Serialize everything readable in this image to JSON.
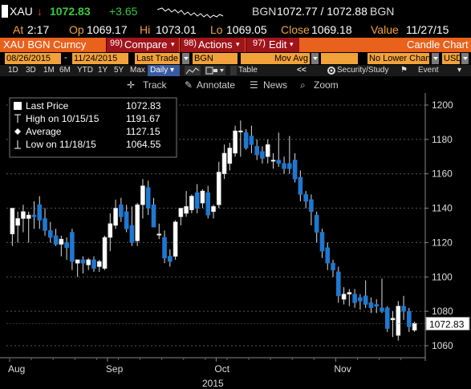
{
  "quote": {
    "ticker": "XAU",
    "arrow": "↓",
    "last": "1072.83",
    "change": "+3.65",
    "source": "BGN",
    "bid_ask": "1072.77 / 1072.88",
    "source2": "BGN",
    "at_label": "At",
    "at_value": "2:17",
    "open_label": "Op",
    "open_value": "1069.17",
    "high_label": "Hi",
    "high_value": "1073.01",
    "low_label": "Lo",
    "low_value": "1069.05",
    "close_label": "Close",
    "close_value": "1069.18",
    "value_label": "Value",
    "value_date": "11/27/15"
  },
  "toolbar": {
    "security": "XAU BGN Curncy",
    "compare": "Compare",
    "compare_num": "99)",
    "actions": "Actions",
    "actions_num": "98)",
    "edit": "Edit",
    "edit_num": "97)",
    "chart_title": "Candle Chart"
  },
  "settings": {
    "start_date": "08/26/2015",
    "dash": "-",
    "end_date": "11/24/2015",
    "price_field": "Last Trade",
    "source": "BGN",
    "study": "Mov Avg",
    "lower_chart": "No Lower Chart",
    "currency": "USD"
  },
  "ranges": [
    "1D",
    "3D",
    "1M",
    "6M",
    "YTD",
    "1Y",
    "5Y",
    "Max"
  ],
  "period": "Daily",
  "table_label": "Table",
  "nav_prev": "<<",
  "security_study": "Security/Study",
  "event": "Event",
  "tools": {
    "track": "Track",
    "annotate": "Annotate",
    "news": "News",
    "zoom": "Zoom"
  },
  "legend": [
    {
      "label": "Last Price",
      "value": "1072.83"
    },
    {
      "label": "High on 10/15/15",
      "value": "1191.67"
    },
    {
      "label": "Average",
      "value": "1127.15"
    },
    {
      "label": "Low on 11/18/15",
      "value": "1064.55"
    }
  ],
  "colors": {
    "up": "#ffffff",
    "down": "#1f78d1",
    "accent": "#e8611d",
    "positive": "#3cc83c",
    "negative": "#e03c3c",
    "field": "#f2a23a"
  },
  "chart_data": {
    "type": "candlestick",
    "ylim": [
      1053,
      1207
    ],
    "yticks": [
      "1060",
      "1080",
      "1100",
      "1120",
      "1140",
      "1160",
      "1180",
      "1200"
    ],
    "xticks": [
      "Aug",
      "Sep",
      "Oct",
      "Nov"
    ],
    "year_label": "2015",
    "last_price_label": "1072.83",
    "candles": [
      {
        "o": 1125,
        "h": 1140,
        "l": 1118,
        "c": 1140
      },
      {
        "o": 1130,
        "h": 1138,
        "l": 1120,
        "c": 1134
      },
      {
        "o": 1134,
        "h": 1142,
        "l": 1126,
        "c": 1138
      },
      {
        "o": 1134,
        "h": 1138,
        "l": 1120,
        "c": 1136
      },
      {
        "o": 1136,
        "h": 1144,
        "l": 1128,
        "c": 1135
      },
      {
        "o": 1142,
        "h": 1147,
        "l": 1128,
        "c": 1133
      },
      {
        "o": 1134,
        "h": 1140,
        "l": 1124,
        "c": 1127
      },
      {
        "o": 1127,
        "h": 1132,
        "l": 1120,
        "c": 1123
      },
      {
        "o": 1124,
        "h": 1128,
        "l": 1118,
        "c": 1119
      },
      {
        "o": 1119,
        "h": 1124,
        "l": 1112,
        "c": 1122
      },
      {
        "o": 1120,
        "h": 1123,
        "l": 1110,
        "c": 1117
      },
      {
        "o": 1126,
        "h": 1128,
        "l": 1104,
        "c": 1109
      },
      {
        "o": 1108,
        "h": 1110,
        "l": 1100,
        "c": 1110
      },
      {
        "o": 1110,
        "h": 1112,
        "l": 1102,
        "c": 1108
      },
      {
        "o": 1107,
        "h": 1111,
        "l": 1104,
        "c": 1110
      },
      {
        "o": 1110,
        "h": 1112,
        "l": 1103,
        "c": 1105
      },
      {
        "o": 1106,
        "h": 1110,
        "l": 1103,
        "c": 1109
      },
      {
        "o": 1105,
        "h": 1124,
        "l": 1104,
        "c": 1123
      },
      {
        "o": 1123,
        "h": 1137,
        "l": 1115,
        "c": 1131
      },
      {
        "o": 1130,
        "h": 1145,
        "l": 1128,
        "c": 1140
      },
      {
        "o": 1142,
        "h": 1146,
        "l": 1132,
        "c": 1135
      },
      {
        "o": 1138,
        "h": 1142,
        "l": 1126,
        "c": 1128
      },
      {
        "o": 1130,
        "h": 1141,
        "l": 1118,
        "c": 1120
      },
      {
        "o": 1121,
        "h": 1143,
        "l": 1118,
        "c": 1142
      },
      {
        "o": 1142,
        "h": 1157,
        "l": 1134,
        "c": 1153
      },
      {
        "o": 1152,
        "h": 1156,
        "l": 1136,
        "c": 1140
      },
      {
        "o": 1142,
        "h": 1146,
        "l": 1130,
        "c": 1129
      },
      {
        "o": 1125,
        "h": 1131,
        "l": 1122,
        "c": 1125
      },
      {
        "o": 1123,
        "h": 1127,
        "l": 1108,
        "c": 1111
      },
      {
        "o": 1112,
        "h": 1116,
        "l": 1106,
        "c": 1109
      },
      {
        "o": 1112,
        "h": 1133,
        "l": 1110,
        "c": 1132
      },
      {
        "o": 1135,
        "h": 1140,
        "l": 1130,
        "c": 1140
      },
      {
        "o": 1137,
        "h": 1150,
        "l": 1135,
        "c": 1141
      },
      {
        "o": 1139,
        "h": 1148,
        "l": 1137,
        "c": 1147
      },
      {
        "o": 1149,
        "h": 1154,
        "l": 1137,
        "c": 1140
      },
      {
        "o": 1143,
        "h": 1151,
        "l": 1140,
        "c": 1150
      },
      {
        "o": 1149,
        "h": 1153,
        "l": 1134,
        "c": 1136
      },
      {
        "o": 1138,
        "h": 1142,
        "l": 1134,
        "c": 1141
      },
      {
        "o": 1142,
        "h": 1167,
        "l": 1140,
        "c": 1161
      },
      {
        "o": 1160,
        "h": 1177,
        "l": 1157,
        "c": 1172
      },
      {
        "o": 1166,
        "h": 1178,
        "l": 1162,
        "c": 1175
      },
      {
        "o": 1172,
        "h": 1188,
        "l": 1170,
        "c": 1185
      },
      {
        "o": 1185,
        "h": 1191,
        "l": 1170,
        "c": 1185
      },
      {
        "o": 1184,
        "h": 1186,
        "l": 1174,
        "c": 1175
      },
      {
        "o": 1182,
        "h": 1188,
        "l": 1172,
        "c": 1177
      },
      {
        "o": 1176,
        "h": 1180,
        "l": 1168,
        "c": 1171
      },
      {
        "o": 1173,
        "h": 1176,
        "l": 1166,
        "c": 1169
      },
      {
        "o": 1170,
        "h": 1180,
        "l": 1166,
        "c": 1177
      },
      {
        "o": 1168,
        "h": 1172,
        "l": 1163,
        "c": 1168
      },
      {
        "o": 1168,
        "h": 1184,
        "l": 1164,
        "c": 1166
      },
      {
        "o": 1166,
        "h": 1170,
        "l": 1160,
        "c": 1163
      },
      {
        "o": 1166,
        "h": 1182,
        "l": 1160,
        "c": 1163
      },
      {
        "o": 1168,
        "h": 1172,
        "l": 1155,
        "c": 1157
      },
      {
        "o": 1158,
        "h": 1162,
        "l": 1144,
        "c": 1148
      },
      {
        "o": 1148,
        "h": 1150,
        "l": 1140,
        "c": 1144
      },
      {
        "o": 1145,
        "h": 1148,
        "l": 1130,
        "c": 1138
      },
      {
        "o": 1136,
        "h": 1138,
        "l": 1120,
        "c": 1126
      },
      {
        "o": 1126,
        "h": 1128,
        "l": 1111,
        "c": 1115
      },
      {
        "o": 1117,
        "h": 1120,
        "l": 1104,
        "c": 1108
      },
      {
        "o": 1108,
        "h": 1110,
        "l": 1100,
        "c": 1104
      },
      {
        "o": 1103,
        "h": 1106,
        "l": 1085,
        "c": 1089
      },
      {
        "o": 1087,
        "h": 1094,
        "l": 1084,
        "c": 1090
      },
      {
        "o": 1090,
        "h": 1093,
        "l": 1083,
        "c": 1091
      },
      {
        "o": 1090,
        "h": 1093,
        "l": 1082,
        "c": 1085
      },
      {
        "o": 1088,
        "h": 1090,
        "l": 1081,
        "c": 1086
      },
      {
        "o": 1089,
        "h": 1098,
        "l": 1082,
        "c": 1084
      },
      {
        "o": 1085,
        "h": 1088,
        "l": 1079,
        "c": 1082
      },
      {
        "o": 1084,
        "h": 1087,
        "l": 1079,
        "c": 1083
      },
      {
        "o": 1082,
        "h": 1099,
        "l": 1079,
        "c": 1080
      },
      {
        "o": 1082,
        "h": 1083,
        "l": 1068,
        "c": 1070
      },
      {
        "o": 1075,
        "h": 1080,
        "l": 1065,
        "c": 1076
      },
      {
        "o": 1066,
        "h": 1086,
        "l": 1063,
        "c": 1083
      },
      {
        "o": 1083,
        "h": 1089,
        "l": 1075,
        "c": 1080
      },
      {
        "o": 1080,
        "h": 1082,
        "l": 1068,
        "c": 1071
      },
      {
        "o": 1069,
        "h": 1074,
        "l": 1068,
        "c": 1073
      }
    ]
  }
}
